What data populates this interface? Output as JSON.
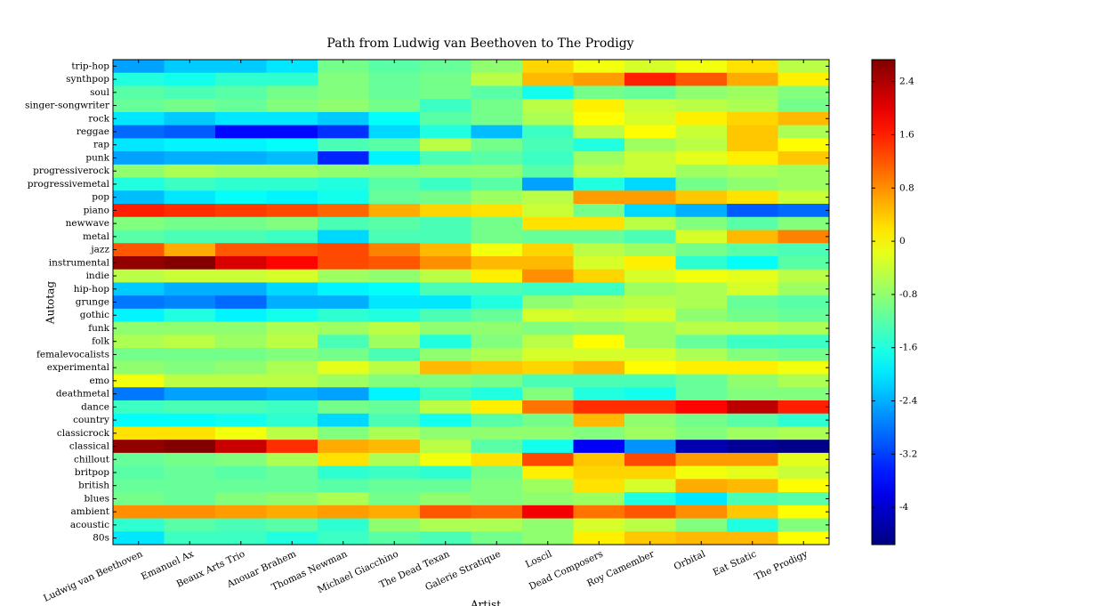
{
  "chart_data": {
    "type": "heatmap",
    "title": "Path from Ludwig van Beethoven to The Prodigy",
    "x_label": "Artist",
    "y_label": "Autotag",
    "x_categories": [
      "Ludwig van Beethoven",
      "Emanuel Ax",
      "Beaux Arts Trio",
      "Anouar Brahem",
      "Thomas Newman",
      "Michael Giacchino",
      "The Dead Texan",
      "Galerie Stratique",
      "Loscil",
      "Dead Composers",
      "Roy Camember",
      "Orbital",
      "Eat Static",
      "The Prodigy"
    ],
    "y_categories": [
      "trip-hop",
      "synthpop",
      "soul",
      "singer-songwriter",
      "rock",
      "reggae",
      "rap",
      "punk",
      "progressiverock",
      "progressivemetal",
      "pop",
      "piano",
      "newwave",
      "metal",
      "jazz",
      "instrumental",
      "indie",
      "hip-hop",
      "grunge",
      "gothic",
      "funk",
      "folk",
      "femalevocalists",
      "experimental",
      "emo",
      "deathmetal",
      "dance",
      "country",
      "classicrock",
      "classical",
      "chillout",
      "britpop",
      "british",
      "blues",
      "ambient",
      "acoustic",
      "80s"
    ],
    "values": [
      [
        -2.5,
        -2.2,
        -2.2,
        -2.0,
        -1.0,
        -1.2,
        -1.1,
        -0.8,
        0.3,
        -0.1,
        -0.3,
        -0.1,
        0.2,
        -0.5
      ],
      [
        -1.6,
        -1.7,
        -1.5,
        -1.5,
        -0.9,
        -1.1,
        -1.0,
        -0.5,
        0.5,
        0.7,
        1.6,
        1.2,
        0.6,
        0.1
      ],
      [
        -1.2,
        -1.3,
        -1.2,
        -1.0,
        -0.9,
        -1.1,
        -1.0,
        -1.2,
        -1.7,
        -1.0,
        -1.1,
        -0.8,
        -0.7,
        -0.9
      ],
      [
        -1.1,
        -1.0,
        -1.1,
        -0.9,
        -0.8,
        -1.0,
        -1.4,
        -1.0,
        -0.5,
        0.1,
        -0.4,
        -0.5,
        -0.6,
        -1.0
      ],
      [
        -2.0,
        -2.2,
        -2.0,
        -2.0,
        -2.2,
        -1.8,
        -1.2,
        -1.0,
        -0.6,
        0.0,
        -0.3,
        0.1,
        0.3,
        0.5
      ],
      [
        -2.9,
        -3.0,
        -3.6,
        -3.6,
        -3.3,
        -2.1,
        -1.6,
        -2.3,
        -1.4,
        -0.5,
        0.0,
        -0.4,
        0.4,
        -0.6
      ],
      [
        -2.0,
        -1.9,
        -1.9,
        -1.8,
        -1.3,
        -1.2,
        -0.5,
        -1.0,
        -1.3,
        -1.6,
        -0.7,
        -0.5,
        0.4,
        0.0
      ],
      [
        -2.5,
        -2.4,
        -2.4,
        -2.3,
        -3.4,
        -1.9,
        -1.3,
        -1.2,
        -1.4,
        -0.7,
        -0.4,
        -0.2,
        0.1,
        0.4
      ],
      [
        -0.8,
        -0.6,
        -0.7,
        -0.7,
        -0.8,
        -0.9,
        -0.8,
        -0.8,
        -1.2,
        -0.5,
        -0.4,
        -0.7,
        -0.6,
        -0.7
      ],
      [
        -1.6,
        -1.4,
        -1.5,
        -1.5,
        -1.6,
        -1.2,
        -1.4,
        -1.2,
        -2.5,
        -1.6,
        -2.1,
        -1.0,
        -0.8,
        -0.7
      ],
      [
        -2.3,
        -2.0,
        -1.8,
        -1.9,
        -1.7,
        -1.1,
        -1.0,
        -0.7,
        -0.5,
        0.7,
        0.7,
        0.4,
        0.2,
        -0.4
      ],
      [
        1.6,
        1.5,
        1.4,
        1.3,
        1.1,
        0.6,
        0.3,
        0.2,
        -0.4,
        -1.0,
        -2.1,
        -2.4,
        -3.0,
        -2.9
      ],
      [
        -0.9,
        -1.0,
        -1.0,
        -0.9,
        -1.3,
        -1.2,
        -1.3,
        -1.0,
        0.2,
        0.2,
        -0.5,
        -0.9,
        -1.2,
        -0.9
      ],
      [
        -1.2,
        -1.3,
        -1.3,
        -1.4,
        -2.1,
        -1.3,
        -1.3,
        -1.0,
        -1.1,
        -1.1,
        -1.3,
        -0.3,
        0.5,
        0.9
      ],
      [
        1.2,
        0.6,
        1.2,
        1.2,
        1.3,
        0.9,
        0.5,
        -0.1,
        0.3,
        -0.5,
        -0.7,
        -1.0,
        -1.2,
        -1.3
      ],
      [
        2.6,
        2.7,
        2.1,
        1.8,
        1.3,
        1.2,
        0.8,
        0.5,
        0.5,
        -0.3,
        0.1,
        -1.5,
        -1.8,
        -1.2
      ],
      [
        -0.5,
        -0.4,
        -0.4,
        -0.3,
        -0.7,
        -0.8,
        -0.5,
        0.1,
        0.8,
        0.3,
        -0.3,
        -0.1,
        -0.2,
        -0.5
      ],
      [
        -2.2,
        -2.4,
        -2.4,
        -2.1,
        -1.9,
        -1.8,
        -1.3,
        -1.3,
        -1.4,
        -1.4,
        -0.7,
        -0.6,
        -0.3,
        -0.7
      ],
      [
        -2.8,
        -2.7,
        -2.9,
        -2.4,
        -2.4,
        -2.0,
        -2.0,
        -1.6,
        -0.8,
        -0.6,
        -0.5,
        -0.6,
        -1.1,
        -1.2
      ],
      [
        -1.9,
        -1.6,
        -1.9,
        -1.7,
        -1.5,
        -1.6,
        -1.3,
        -1.1,
        -0.3,
        -0.4,
        -0.3,
        -0.8,
        -1.0,
        -1.1
      ],
      [
        -0.8,
        -0.8,
        -0.8,
        -0.6,
        -0.7,
        -0.5,
        -0.8,
        -0.8,
        -0.9,
        -0.8,
        -0.7,
        -0.5,
        -0.5,
        -0.6
      ],
      [
        -0.6,
        -0.5,
        -0.7,
        -0.5,
        -1.3,
        -0.7,
        -1.6,
        -0.9,
        -0.5,
        0.0,
        -0.7,
        -1.1,
        -1.4,
        -1.4
      ],
      [
        -1.0,
        -1.0,
        -1.0,
        -0.9,
        -1.0,
        -1.3,
        -0.8,
        -0.6,
        -0.3,
        -0.3,
        -0.3,
        -0.6,
        -0.9,
        -1.0
      ],
      [
        -0.8,
        -0.9,
        -0.8,
        -0.6,
        -0.2,
        -0.5,
        0.5,
        0.4,
        0.3,
        0.5,
        0.0,
        0.1,
        0.1,
        -0.1
      ],
      [
        -0.1,
        -0.5,
        -0.5,
        -0.5,
        -0.7,
        -0.9,
        -0.9,
        -1.0,
        -1.3,
        -1.3,
        -1.3,
        -1.1,
        -0.8,
        -0.6
      ],
      [
        -2.8,
        -2.5,
        -2.5,
        -2.4,
        -2.5,
        -1.9,
        -1.4,
        -1.6,
        -0.9,
        -1.6,
        -1.7,
        -1.1,
        -0.9,
        -0.9
      ],
      [
        -1.4,
        -1.3,
        -1.3,
        -1.4,
        -1.0,
        -1.1,
        -0.5,
        0.1,
        1.0,
        1.5,
        1.5,
        1.8,
        2.3,
        1.6
      ],
      [
        -1.8,
        -1.8,
        -1.7,
        -1.5,
        -2.1,
        -1.3,
        -1.7,
        -1.2,
        -1.0,
        0.5,
        -0.8,
        -1.0,
        -1.2,
        -1.5
      ],
      [
        0.2,
        0.2,
        -0.1,
        -0.5,
        -0.9,
        -0.6,
        -0.8,
        -0.8,
        -0.8,
        -0.9,
        -0.7,
        -0.9,
        -0.7,
        -0.6
      ],
      [
        2.6,
        2.7,
        2.2,
        1.5,
        0.6,
        0.5,
        -0.5,
        -1.2,
        -1.7,
        -3.7,
        -2.6,
        -4.2,
        -4.4,
        -4.5
      ],
      [
        -1.1,
        -1.0,
        -0.9,
        -0.6,
        0.2,
        -0.6,
        -0.1,
        0.2,
        1.3,
        0.4,
        1.3,
        0.7,
        0.7,
        -0.2
      ],
      [
        -1.2,
        -1.1,
        -1.2,
        -1.1,
        -1.5,
        -1.4,
        -1.5,
        -1.0,
        0.1,
        0.3,
        0.3,
        -0.1,
        -0.2,
        -0.4
      ],
      [
        -1.1,
        -1.1,
        -1.1,
        -1.1,
        -1.2,
        -1.1,
        -1.1,
        -0.9,
        -0.7,
        0.2,
        -0.3,
        0.6,
        0.5,
        0.0
      ],
      [
        -1.0,
        -1.1,
        -0.9,
        -0.8,
        -0.6,
        -1.0,
        -0.8,
        -0.9,
        -0.8,
        -0.7,
        -1.6,
        -2.0,
        -1.3,
        -1.2
      ],
      [
        0.8,
        0.8,
        0.7,
        0.6,
        0.7,
        0.6,
        1.2,
        1.1,
        1.9,
        1.0,
        1.2,
        0.8,
        0.4,
        0.0
      ],
      [
        -1.5,
        -1.2,
        -1.3,
        -1.2,
        -1.5,
        -0.8,
        -0.6,
        -0.6,
        -0.8,
        -0.3,
        -0.5,
        -0.9,
        -1.6,
        -0.9
      ],
      [
        -2.0,
        -1.4,
        -1.4,
        -1.6,
        -1.4,
        -1.2,
        -1.3,
        -1.0,
        -0.8,
        0.1,
        0.4,
        0.5,
        0.5,
        0.0
      ]
    ],
    "colormap": "jet",
    "zlim": [
      -4.56,
      2.73
    ],
    "colorbar_ticks": [
      2.4,
      1.6,
      0.8,
      0.0,
      -0.8,
      -1.6,
      -2.4,
      -3.2,
      -4.0
    ]
  }
}
